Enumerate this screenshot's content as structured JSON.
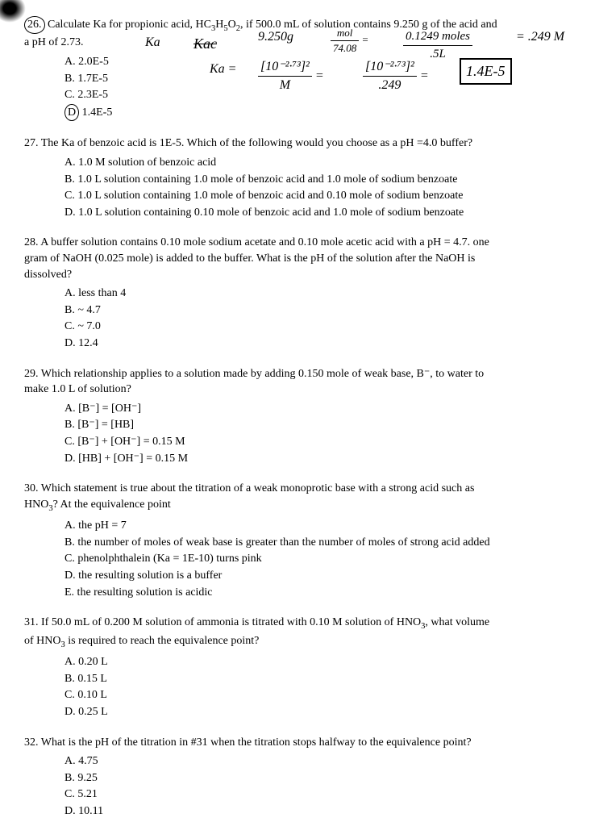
{
  "q26": {
    "num": "26.",
    "text_1": "Calculate Ka for propionic acid, HC",
    "formula_sub1": "3",
    "text_2": "H",
    "formula_sub2": "5",
    "text_3": "O",
    "formula_sub3": "2",
    "text_4": ", if 500.0 mL of solution contains 9.250 g of the acid and",
    "text_5": "a pH of 2.73.",
    "choices": {
      "a": "A. 2.0E-5",
      "b": "B. 1.7E-5",
      "c": "C. 2.3E-5",
      "d_letter": "D",
      "d_rest": "1.4E-5"
    }
  },
  "handwriting": {
    "ka_label": "Ka",
    "kac": "Kac",
    "calc1": "9.250g",
    "frac1_num": "mol",
    "frac1_den": "74.08",
    "eq1": "=",
    "frac2_num": "0.1249 moles",
    "frac2_den": ".5L",
    "result1": "= .249 M",
    "ka_eq": "Ka =",
    "frac3_num": "[10⁻²·⁷³]²",
    "frac3_den": "M",
    "eq2": "=",
    "frac4_num": "[10⁻²·⁷³]²",
    "frac4_den": ".249",
    "eq3": "=",
    "boxed": "1.4E-5"
  },
  "q27": {
    "num": "27.",
    "text": "The Ka of benzoic acid is 1E-5. Which of the following would you choose as a pH =4.0 buffer?",
    "choices": {
      "a": "A. 1.0 M solution of benzoic acid",
      "b": "B. 1.0 L solution containing 1.0 mole of benzoic acid and 1.0 mole of sodium benzoate",
      "c": "C. 1.0 L solution containing 1.0 mole of benzoic acid and 0.10 mole of sodium benzoate",
      "d": "D. 1.0 L solution containing 0.10 mole of benzoic acid and 1.0 mole of sodium benzoate"
    }
  },
  "q28": {
    "num": "28.",
    "text_1": "A buffer solution contains 0.10 mole sodium acetate and 0.10 mole acetic acid with a pH = 4.7. one",
    "text_2": "gram of NaOH (0.025 mole) is added to the buffer. What is the pH of the solution after the NaOH is",
    "text_3": "dissolved?",
    "choices": {
      "a": "A. less than 4",
      "b": "B. ~ 4.7",
      "c": "C. ~ 7.0",
      "d": "D. 12.4"
    }
  },
  "q29": {
    "num": "29.",
    "text_1": "Which relationship applies to a solution made by adding 0.150 mole of weak base, B⁻, to water to",
    "text_2": "make 1.0 L of solution?",
    "choices": {
      "a": "A. [B⁻] = [OH⁻]",
      "b": "B. [B⁻] = [HB]",
      "c": "C. [B⁻] + [OH⁻] = 0.15 M",
      "d": "D. [HB] + [OH⁻] = 0.15 M"
    }
  },
  "q30": {
    "num": "30.",
    "text_1": "Which statement is true about the titration of a weak monoprotic base with a strong acid such as",
    "text_2a": "HNO",
    "text_2sub": "3",
    "text_2b": "? At the equivalence point",
    "choices": {
      "a": "A. the pH = 7",
      "b": "B. the number of moles of weak base is greater than the number of moles of strong acid added",
      "c": "C. phenolphthalein (Ka = 1E-10) turns pink",
      "d": "D. the resulting solution is a buffer",
      "e": "E. the resulting solution is acidic"
    }
  },
  "q31": {
    "num": "31.",
    "text_1a": "If 50.0 mL of 0.200 M solution of ammonia is titrated with 0.10 M solution of HNO",
    "text_1sub": "3",
    "text_1b": ", what volume",
    "text_2a": "of HNO",
    "text_2sub": "3",
    "text_2b": " is required to reach the equivalence point?",
    "choices": {
      "a": "A. 0.20 L",
      "b": "B. 0.15 L",
      "c": "C. 0.10 L",
      "d": "D. 0.25 L"
    }
  },
  "q32": {
    "num": "32.",
    "text": "What is the pH of the titration in #31 when the titration stops halfway to the equivalence point?",
    "choices": {
      "a": "A. 4.75",
      "b": "B. 9.25",
      "c": "C. 5.21",
      "d": "D. 10.11"
    }
  }
}
